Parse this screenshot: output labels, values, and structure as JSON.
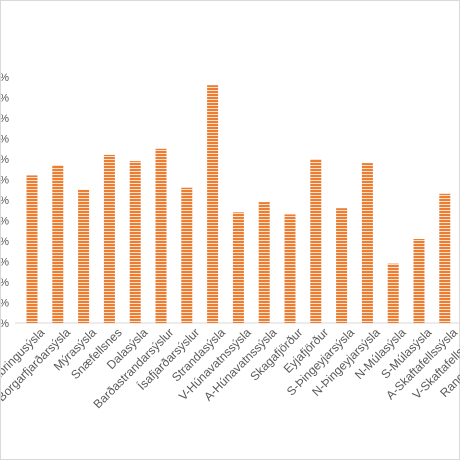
{
  "chart_data": {
    "type": "bar",
    "title": "",
    "xlabel": "",
    "ylabel": "",
    "categories": [
      "Gullbringusýsla",
      "Borgarfjarðarsýsla",
      "Mýrasýsla",
      "Snæfellsnes",
      "Dalasýsla",
      "Barðastrandarsýslur",
      "Ísafjarðarsýslur",
      "Strandasýsla",
      "V-Húnavatnssýsla",
      "A-Húnavatnssýsla",
      "Skagafjörður",
      "Eyjafjörður",
      "S-Þingeyjarsýsla",
      "N-Þingeyjarsýsla",
      "N-Múlasýsla",
      "S-Múlasýsla",
      "A-Skaftafellssýsla",
      "V-Skaftafellssýsla",
      "Rangarvallasýsla"
    ],
    "values": [
      7.2,
      7.7,
      6.5,
      8.2,
      7.9,
      8.5,
      6.6,
      11.6,
      5.4,
      5.9,
      5.3,
      8.0,
      5.6,
      7.8,
      2.9,
      4.1,
      6.3,
      null,
      null
    ],
    "ylim": [
      0,
      12
    ],
    "y_ticks_count": 13,
    "grid": false,
    "legend": "none",
    "bar_color": "#ed7d31",
    "bar_pattern": "horizontal-stripes"
  }
}
